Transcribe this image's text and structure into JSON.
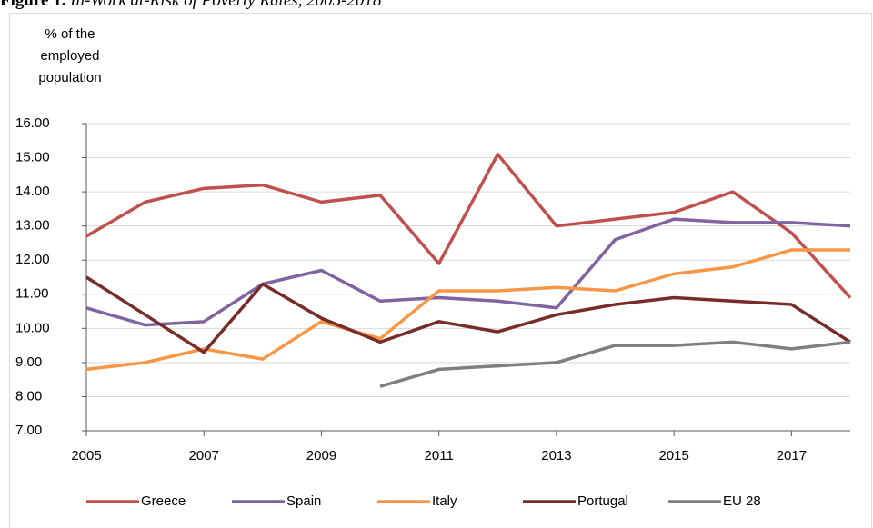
{
  "chart_data": {
    "type": "line",
    "title_label": "Figure 1.",
    "title": "In-Work at-Risk of Poverty Rates, 2005-2018",
    "y_label": "% of the employed population",
    "x": [
      2005,
      2006,
      2007,
      2008,
      2009,
      2010,
      2011,
      2012,
      2013,
      2014,
      2015,
      2016,
      2017,
      2018
    ],
    "xlim": [
      2005,
      2018
    ],
    "xticks": [
      2005,
      2007,
      2009,
      2011,
      2013,
      2015,
      2017
    ],
    "ylim": [
      7,
      16
    ],
    "yticks": [
      {
        "value": 7,
        "label": "7.00"
      },
      {
        "value": 8,
        "label": "8.00"
      },
      {
        "value": 9,
        "label": "9.00"
      },
      {
        "value": 10,
        "label": "10.00"
      },
      {
        "value": 11,
        "label": "11.00"
      },
      {
        "value": 12,
        "label": "12.00"
      },
      {
        "value": 13,
        "label": "13.00"
      },
      {
        "value": 14,
        "label": "14.00"
      },
      {
        "value": 15,
        "label": "15.00"
      },
      {
        "value": 16,
        "label": "16.00"
      }
    ],
    "grid": true,
    "legend": "bottom",
    "series": [
      {
        "name": "Greece",
        "color": "#c0504d",
        "values": [
          12.7,
          13.7,
          14.1,
          14.2,
          13.7,
          13.9,
          11.9,
          15.1,
          13.0,
          13.2,
          13.4,
          14.0,
          12.8,
          10.9
        ]
      },
      {
        "name": "Spain",
        "color": "#8064a2",
        "values": [
          10.6,
          10.1,
          10.2,
          11.3,
          11.7,
          10.8,
          10.9,
          10.8,
          10.6,
          12.6,
          13.2,
          13.1,
          13.1,
          13.0
        ]
      },
      {
        "name": "Italy",
        "color": "#f79646",
        "values": [
          8.8,
          9.0,
          9.4,
          9.1,
          10.2,
          9.7,
          11.1,
          11.1,
          11.2,
          11.1,
          11.6,
          11.8,
          12.3,
          12.3
        ]
      },
      {
        "name": "Portugal",
        "color": "#772c2a",
        "values": [
          11.5,
          10.4,
          9.3,
          11.3,
          10.3,
          9.6,
          10.2,
          9.9,
          10.4,
          10.7,
          10.9,
          10.8,
          10.7,
          9.6
        ]
      },
      {
        "name": "EU 28",
        "color": "#7f7f7f",
        "values": [
          null,
          null,
          null,
          null,
          null,
          8.3,
          8.8,
          8.9,
          9.0,
          9.5,
          9.5,
          9.6,
          9.4,
          9.6
        ]
      }
    ]
  }
}
